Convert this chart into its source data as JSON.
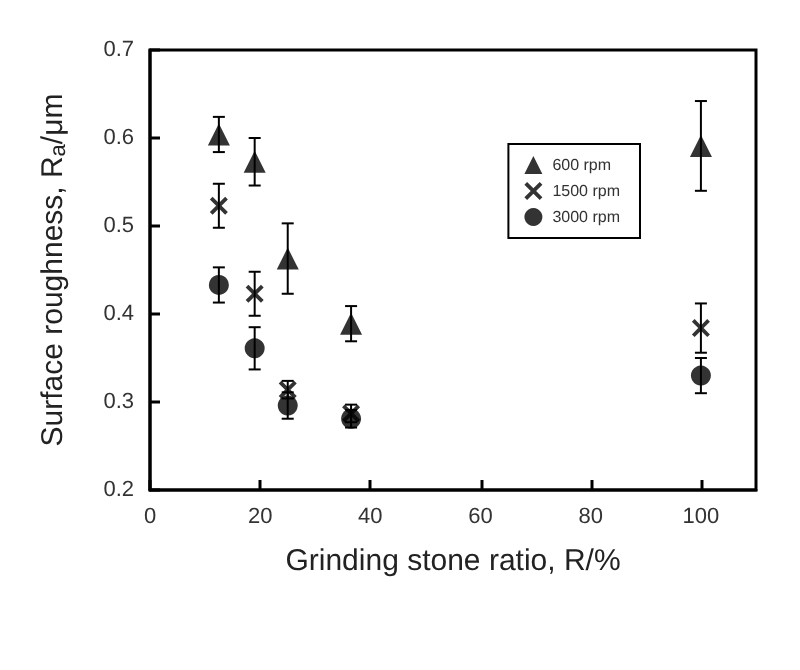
{
  "chart_data": {
    "type": "scatter",
    "xlabel": "Grinding stone ratio, R/%",
    "ylabel": "Surface roughness, R$_{a}$/μm",
    "x": [
      12.5,
      19,
      25,
      36.5,
      100
    ],
    "series": [
      {
        "name": "600 rpm",
        "color": "#000000",
        "marker": "triangle",
        "values": [
          0.604,
          0.573,
          0.463,
          0.389,
          0.591
        ],
        "errors": [
          0.02,
          0.027,
          0.04,
          0.02,
          0.051
        ]
      },
      {
        "name": "1500 rpm",
        "color": "#000000",
        "marker": "cross",
        "values": [
          0.523,
          0.423,
          0.314,
          0.287,
          0.384
        ],
        "errors": [
          0.025,
          0.025,
          0.01,
          0.01,
          0.028
        ]
      },
      {
        "name": "3000 rpm",
        "color": "#000000",
        "marker": "circle",
        "values": [
          0.433,
          0.361,
          0.296,
          0.281,
          0.33
        ],
        "errors": [
          0.02,
          0.024,
          0.015,
          0.01,
          0.02
        ]
      }
    ],
    "xlim": [
      0,
      110
    ],
    "xticks": [
      0,
      20,
      40,
      60,
      80,
      100
    ],
    "ylim": [
      0.2,
      0.7
    ],
    "yticks": [
      0.2,
      0.3,
      0.4,
      0.5,
      0.6,
      0.7
    ],
    "grid": false,
    "legend": "top right"
  }
}
